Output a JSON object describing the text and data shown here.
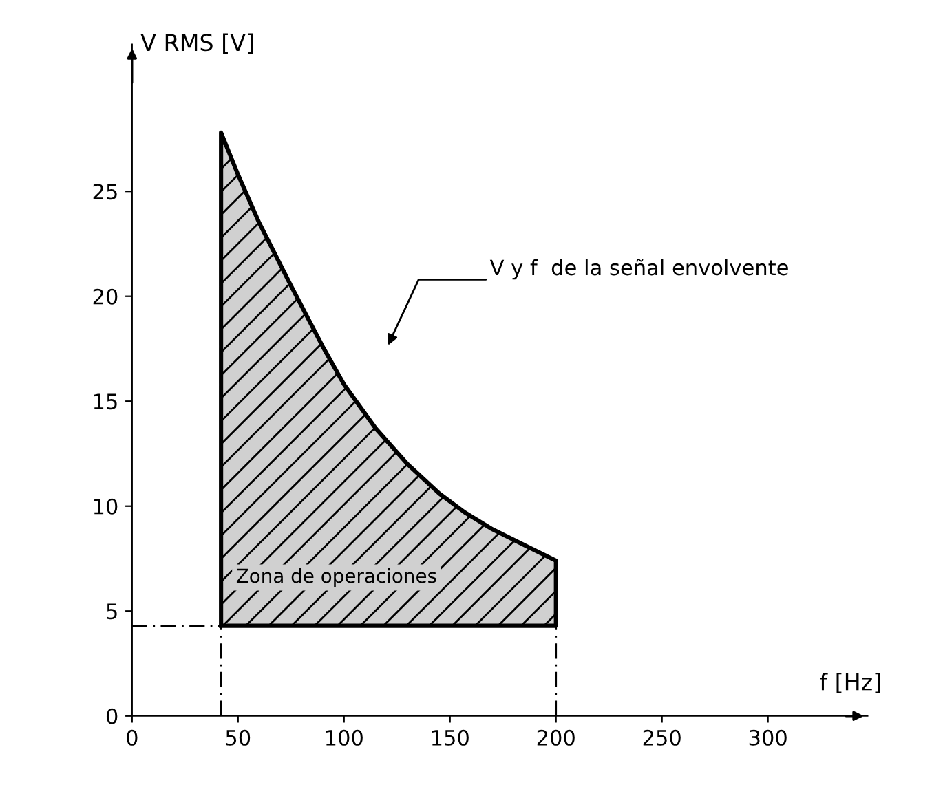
{
  "chart_data": {
    "type": "area",
    "xlabel": "f [Hz]",
    "ylabel": "V RMS [V]",
    "x": [
      42,
      50,
      60,
      75,
      90,
      100,
      115,
      130,
      145,
      157,
      170,
      186,
      200
    ],
    "series": [
      {
        "color": "#d0d0d0",
        "values": [
          27.8,
          25.8,
          23.5,
          20.5,
          17.6,
          15.8,
          13.7,
          12.0,
          10.6,
          9.7,
          8.9,
          8.1,
          7.4
        ]
      }
    ],
    "xlim": [
      0,
      347
    ],
    "ylim": [
      0,
      32
    ],
    "xticks": [
      0,
      50,
      100,
      150,
      200,
      250,
      300
    ],
    "yticks": [
      0,
      5,
      10,
      15,
      20,
      25
    ],
    "ref_lines": [
      {
        "axis": "x",
        "value": 42,
        "line_style": "dashed"
      },
      {
        "axis": "x",
        "value": 200,
        "line_style": "dashed"
      },
      {
        "axis": "y",
        "value": 4.3,
        "line_style": "dashed"
      }
    ],
    "annotations": [
      "Zona de operaciones",
      "V y f  de la señal envolvente"
    ],
    "grid": false
  }
}
